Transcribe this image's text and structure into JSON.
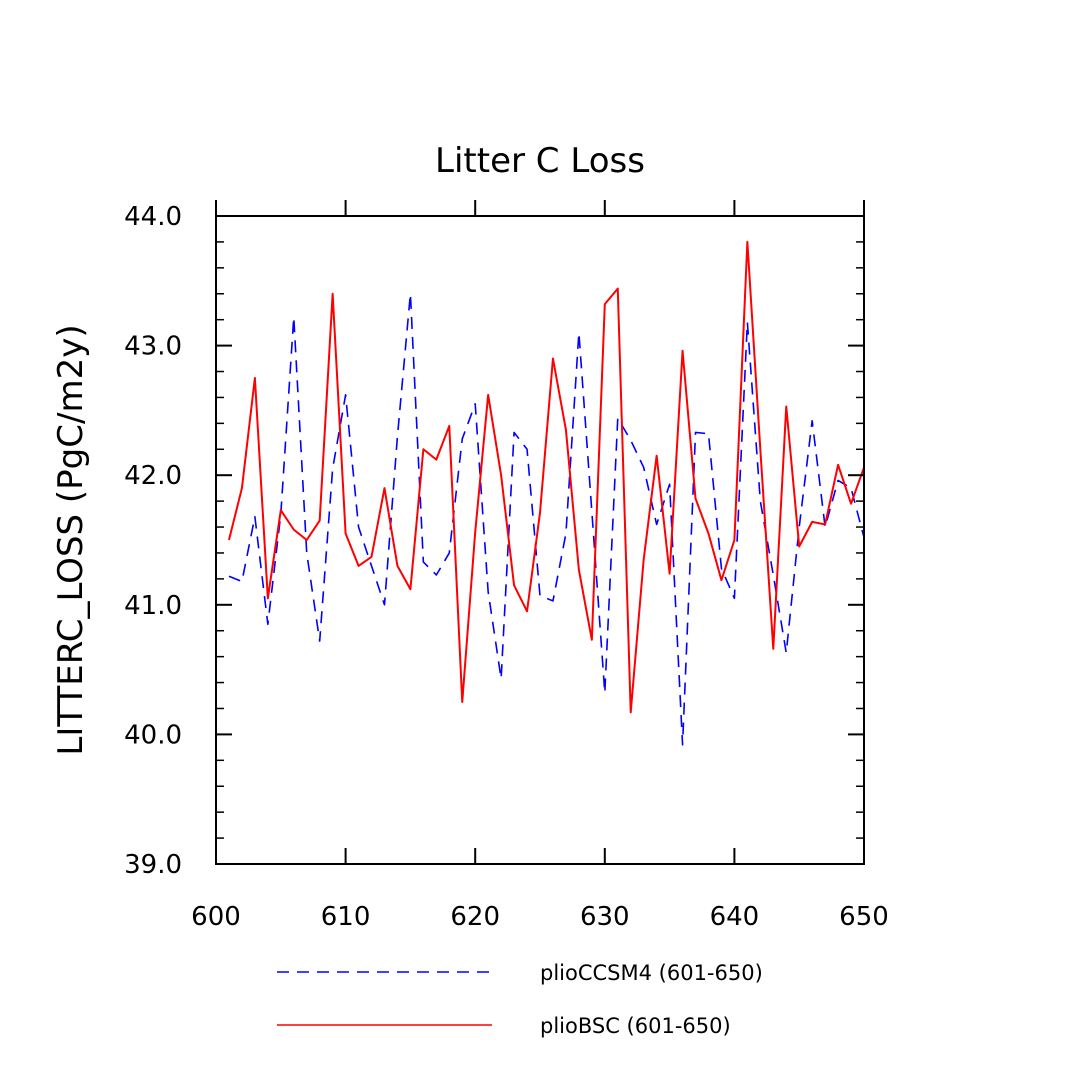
{
  "chart_data": {
    "type": "line",
    "title": "Litter C Loss",
    "xlabel": "",
    "ylabel": "LITTERC_LOSS  (PgC/m2y)",
    "xlim": [
      600,
      650
    ],
    "ylim": [
      39.0,
      44.0
    ],
    "x_ticks": [
      "600",
      "610",
      "620",
      "630",
      "640",
      "650"
    ],
    "y_ticks": [
      "39.0",
      "40.0",
      "41.0",
      "42.0",
      "43.0",
      "44.0"
    ],
    "grid": false,
    "legend_position": "bottom",
    "x": [
      601,
      602,
      603,
      604,
      605,
      606,
      607,
      608,
      609,
      610,
      611,
      612,
      613,
      614,
      615,
      616,
      617,
      618,
      619,
      620,
      621,
      622,
      623,
      624,
      625,
      626,
      627,
      628,
      629,
      630,
      631,
      632,
      633,
      634,
      635,
      636,
      637,
      638,
      639,
      640,
      641,
      642,
      643,
      644,
      645,
      646,
      647,
      648,
      649,
      650
    ],
    "series": [
      {
        "name": "plioCCSM4 (601-650)",
        "color": "#0000ff",
        "style": "dashed",
        "values": [
          41.22,
          41.18,
          41.68,
          40.85,
          41.7,
          43.22,
          41.4,
          40.72,
          42.05,
          42.62,
          41.6,
          41.3,
          41.0,
          42.3,
          43.4,
          41.33,
          41.23,
          41.4,
          42.28,
          42.55,
          41.1,
          40.43,
          42.33,
          42.2,
          41.07,
          41.03,
          41.55,
          43.1,
          41.72,
          40.32,
          42.44,
          42.27,
          42.06,
          41.62,
          41.93,
          39.92,
          42.33,
          42.32,
          41.28,
          41.05,
          43.18,
          41.8,
          41.23,
          40.63,
          41.6,
          42.42,
          41.6,
          41.96,
          41.9,
          41.52
        ]
      },
      {
        "name": "plioBSC (601-650)",
        "color": "#ff0000",
        "style": "solid",
        "values": [
          41.5,
          41.9,
          42.75,
          41.05,
          41.73,
          41.58,
          41.5,
          41.65,
          43.4,
          41.55,
          41.3,
          41.37,
          41.9,
          41.3,
          41.12,
          42.2,
          42.12,
          42.38,
          40.25,
          41.56,
          42.62,
          42.0,
          41.15,
          40.95,
          41.71,
          42.9,
          42.35,
          41.27,
          40.73,
          43.32,
          43.44,
          40.17,
          41.35,
          42.15,
          41.24,
          42.96,
          41.82,
          41.55,
          41.19,
          41.5,
          43.8,
          42.2,
          40.66,
          42.53,
          41.45,
          41.64,
          41.62,
          42.08,
          41.78,
          42.06
        ]
      }
    ]
  }
}
